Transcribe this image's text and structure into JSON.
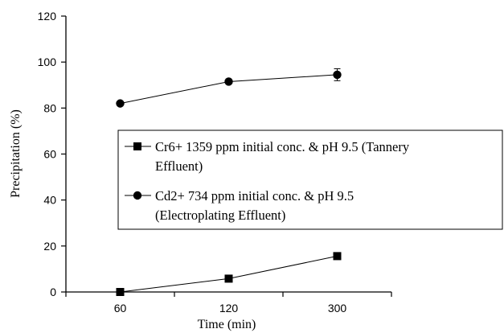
{
  "chart_data": {
    "type": "line",
    "categories": [
      "60",
      "120",
      "300"
    ],
    "series": [
      {
        "name_lines": [
          "Cr6+ 1359 ppm initial conc. & pH 9.5 (Tannery",
          "Effluent)"
        ],
        "marker": "square",
        "values": [
          0,
          5.8,
          15.6
        ]
      },
      {
        "name_lines": [
          "Cd2+ 734 ppm initial conc. & pH 9.5",
          "(Electroplating Effluent)"
        ],
        "marker": "circle",
        "values": [
          82,
          91.5,
          94.5
        ],
        "error": [
          0,
          0,
          2.6
        ]
      }
    ],
    "xlabel": "Time (min)",
    "ylabel": "Precipitation (%)",
    "ylim": [
      0,
      120
    ],
    "yticks": [
      0,
      20,
      40,
      60,
      80,
      100,
      120
    ],
    "grid": false,
    "legend_position": "center-right"
  }
}
